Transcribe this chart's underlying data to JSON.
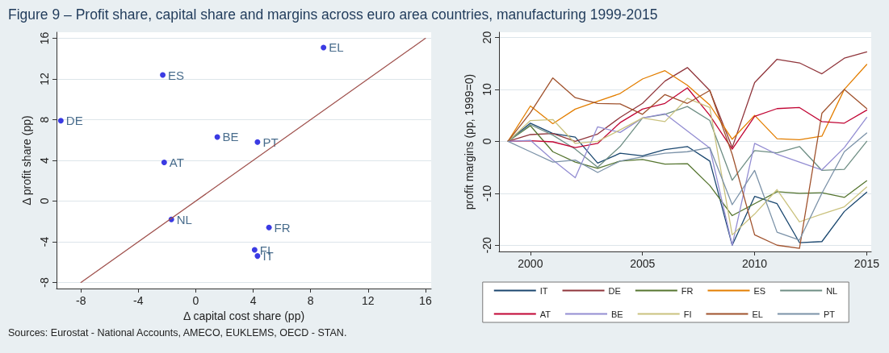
{
  "chart_data": [
    {
      "type": "scatter",
      "title": "Figure 9 – Profit share, capital share and margins across euro area countries, manufacturing 1999-2015",
      "annotations": [
        "Sources: Eurostat - National Accounts, AMECO, EUKLEMS, OECD - STAN."
      ],
      "xlabel": "Δ capital cost share (pp)",
      "ylabel": "Δ profit share (pp)",
      "xlim": [
        -9.7,
        16.4
      ],
      "xticks": [
        -8,
        -4,
        0,
        4,
        8,
        12,
        16
      ],
      "ylim": [
        -8.6,
        16.6
      ],
      "yticks": [
        -8,
        -4,
        0,
        4,
        8,
        12,
        16
      ],
      "grid": "y",
      "marker": "circle",
      "series": [
        {
          "color": "#0a0adc",
          "x": [
            -9.4,
            -2.3,
            8.9,
            1.5,
            4.3,
            -2.2,
            -1.7,
            5.1,
            4.1,
            4.3
          ],
          "values": [
            7.9,
            12.4,
            15.1,
            6.3,
            5.8,
            3.8,
            -1.8,
            -2.6,
            -4.8,
            -5.4
          ],
          "value_labels": [
            "DE",
            "ES",
            "EL",
            "BE",
            "PT",
            "AT",
            "NL",
            "FR",
            "FI",
            "IT"
          ]
        },
        {
          "type": "line",
          "color": "#a0524e",
          "x": [
            -8,
            16
          ],
          "values": [
            -8,
            16
          ],
          "marker": "none"
        }
      ]
    },
    {
      "type": "line",
      "ylabel": "profit margins (pp, 1999=0)",
      "xlim": [
        1998.6,
        2015.2
      ],
      "xticks": [
        2000,
        2005,
        2010,
        2015
      ],
      "ylim": [
        -21.2,
        21
      ],
      "yticks": [
        -20,
        -10,
        0,
        10,
        20
      ],
      "grid": "y",
      "legend": "bottom",
      "marker": "none",
      "x": [
        1999,
        2000,
        2001,
        2002,
        2003,
        2004,
        2005,
        2006,
        2007,
        2008,
        2009,
        2010,
        2011,
        2012,
        2013,
        2014,
        2015
      ],
      "series": [
        {
          "name": "IT",
          "color": "#1a476f",
          "values": [
            0,
            3.5,
            1.5,
            0.8,
            -4.2,
            -2.3,
            -2.8,
            -1.6,
            -1,
            -3.8,
            -20,
            -10.6,
            -12,
            -19.5,
            -19.3,
            -13.5,
            -9.8
          ]
        },
        {
          "name": "DE",
          "color": "#90353b",
          "values": [
            0,
            1.3,
            1.5,
            0,
            1.4,
            4.6,
            7.3,
            11.6,
            14.2,
            9.8,
            -1.2,
            11.3,
            15.8,
            15.1,
            13,
            16,
            17.2
          ]
        },
        {
          "name": "FR",
          "color": "#55752f",
          "values": [
            0,
            3,
            -2,
            -4,
            -5.2,
            -3.8,
            -3.5,
            -4.4,
            -4.3,
            -8.5,
            -14.3,
            -12,
            -9.7,
            -10,
            -9.9,
            -10.8,
            -7.6
          ]
        },
        {
          "name": "ES",
          "color": "#e37e00",
          "values": [
            0,
            6.8,
            3.4,
            6.2,
            7.7,
            9.2,
            12,
            13.6,
            10.8,
            7,
            0.4,
            5,
            0.5,
            0.3,
            1,
            10,
            14.8
          ]
        },
        {
          "name": "NL",
          "color": "#6e8e84",
          "values": [
            0,
            3.2,
            1.2,
            -1.5,
            -5,
            -1,
            4.5,
            5.2,
            6.7,
            4,
            -7.5,
            -1.8,
            -2.2,
            -1,
            -5.6,
            -5.4,
            0
          ]
        },
        {
          "name": "AT",
          "color": "#c10534",
          "values": [
            0,
            0.1,
            -0.1,
            -1.2,
            -0.4,
            3.6,
            6.2,
            7.3,
            10.3,
            5,
            -1.5,
            4.8,
            6.3,
            6.5,
            3.8,
            3.5,
            6
          ]
        },
        {
          "name": "BE",
          "color": "#938dd2",
          "values": [
            0,
            0.2,
            -3.6,
            -7,
            2.8,
            1.7,
            4.5,
            5.3,
            2,
            -1.3,
            -20,
            -0.4,
            -2.5,
            -4,
            -5.5,
            -1.2,
            4.6
          ]
        },
        {
          "name": "FI",
          "color": "#cac27e",
          "values": [
            0,
            4,
            4.2,
            -0.4,
            0,
            2.2,
            4.5,
            3.8,
            8.3,
            6.5,
            -18,
            -14,
            -9.3,
            -15.5,
            -14,
            -12.6,
            -8.8
          ]
        },
        {
          "name": "EL",
          "color": "#a0522d",
          "values": [
            0,
            5.5,
            12.2,
            8.4,
            7.3,
            7.2,
            5.2,
            9,
            7.3,
            9.8,
            -2.5,
            -18,
            -20,
            -20.6,
            5.4,
            10,
            6.3
          ]
        },
        {
          "name": "PT",
          "color": "#7b92a8",
          "values": [
            0,
            -2,
            -4,
            -3.6,
            -6,
            -3.8,
            -3,
            -2.3,
            -2,
            -1.2,
            -12.2,
            -5.6,
            -17.5,
            -19,
            -10,
            -2,
            1.6
          ]
        }
      ]
    }
  ]
}
